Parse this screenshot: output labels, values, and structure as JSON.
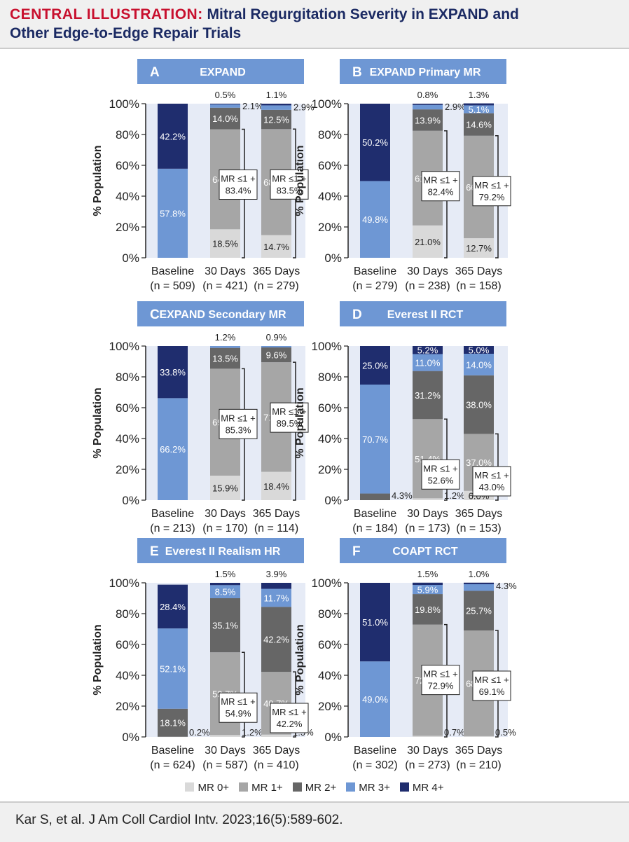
{
  "header": {
    "title_lead": "CENTRAL ILLUSTRATION:",
    "title_line1": " Mitral Regurgitation Severity in EXPAND and",
    "title_line2": "Other Edge-to-Edge Repair Trials"
  },
  "colors": {
    "MR 0+": "#d9d9d9",
    "MR 1+": "#a6a6a6",
    "MR 2+": "#666666",
    "MR 3+": "#6e97d4",
    "MR 4+": "#1f2d6e",
    "panel_title_bg": "#6e97d4",
    "plot_bg": "#e6ebf6"
  },
  "legend": {
    "items": [
      "MR 0+",
      "MR 1+",
      "MR 2+",
      "MR 3+",
      "MR 4+"
    ]
  },
  "footer": {
    "citation": "Kar S, et al. J Am Coll Cardiol Intv. 2023;16(5):589-602."
  },
  "chart_data": [
    {
      "type": "bar",
      "stacked": true,
      "letter": "A",
      "title": "EXPAND",
      "ylabel": "% Population",
      "ylim": [
        0,
        100
      ],
      "yticks": [
        "0%",
        "20%",
        "40%",
        "60%",
        "80%",
        "100%"
      ],
      "categories": [
        "Baseline",
        "30 Days",
        "365 Days"
      ],
      "n": [
        "(n = 509)",
        "(n = 421)",
        "(n = 279)"
      ],
      "series": [
        {
          "name": "MR 0+",
          "values": [
            0,
            18.5,
            14.7
          ]
        },
        {
          "name": "MR 1+",
          "values": [
            0,
            64.9,
            68.8
          ]
        },
        {
          "name": "MR 2+",
          "values": [
            0,
            14.0,
            12.5
          ]
        },
        {
          "name": "MR 3+",
          "values": [
            57.8,
            2.1,
            2.9
          ]
        },
        {
          "name": "MR 4+",
          "values": [
            42.2,
            0.5,
            1.1
          ]
        }
      ],
      "bracket_label1": "MR ≤1 +",
      "bracket_values": [
        null,
        "83.4%",
        "83.5%"
      ]
    },
    {
      "type": "bar",
      "stacked": true,
      "letter": "B",
      "title": "EXPAND Primary MR",
      "ylabel": "% Population",
      "ylim": [
        0,
        100
      ],
      "yticks": [
        "0%",
        "20%",
        "40%",
        "60%",
        "80%",
        "100%"
      ],
      "categories": [
        "Baseline",
        "30 Days",
        "365 Days"
      ],
      "n": [
        "(n = 279)",
        "(n = 238)",
        "(n = 158)"
      ],
      "series": [
        {
          "name": "MR 0+",
          "values": [
            0,
            21.0,
            12.7
          ]
        },
        {
          "name": "MR 1+",
          "values": [
            0,
            61.4,
            66.5
          ]
        },
        {
          "name": "MR 2+",
          "values": [
            0,
            13.9,
            14.6
          ]
        },
        {
          "name": "MR 3+",
          "values": [
            49.8,
            2.9,
            5.1
          ]
        },
        {
          "name": "MR 4+",
          "values": [
            50.2,
            0.8,
            1.3
          ]
        }
      ],
      "bracket_label1": "MR ≤1 +",
      "bracket_values": [
        null,
        "82.4%",
        "79.2%"
      ]
    },
    {
      "type": "bar",
      "stacked": true,
      "letter": "C",
      "title": "EXPAND Secondary MR",
      "ylabel": "% Population",
      "ylim": [
        0,
        100
      ],
      "yticks": [
        "0%",
        "20%",
        "40%",
        "60%",
        "80%",
        "100%"
      ],
      "categories": [
        "Baseline",
        "30 Days",
        "365 Days"
      ],
      "n": [
        "(n = 213)",
        "(n = 170)",
        "(n = 114)"
      ],
      "series": [
        {
          "name": "MR 0+",
          "values": [
            0,
            15.9,
            18.4
          ]
        },
        {
          "name": "MR 1+",
          "values": [
            0,
            69.4,
            71.1
          ]
        },
        {
          "name": "MR 2+",
          "values": [
            0,
            13.5,
            9.6
          ]
        },
        {
          "name": "MR 3+",
          "values": [
            66.2,
            1.2,
            0.9
          ]
        },
        {
          "name": "MR 4+",
          "values": [
            33.8,
            0,
            0
          ]
        }
      ],
      "bracket_label1": "MR ≤1 +",
      "bracket_values": [
        null,
        "85.3%",
        "89.5%"
      ]
    },
    {
      "type": "bar",
      "stacked": true,
      "letter": "D",
      "title": "Everest II RCT",
      "ylabel": "% Population",
      "ylim": [
        0,
        100
      ],
      "yticks": [
        "0%",
        "20%",
        "40%",
        "60%",
        "80%",
        "100%"
      ],
      "categories": [
        "Baseline",
        "30 Days",
        "365 Days"
      ],
      "n": [
        "(n = 184)",
        "(n = 173)",
        "(n = 153)"
      ],
      "series": [
        {
          "name": "MR 0+",
          "values": [
            0,
            1.2,
            6.0
          ]
        },
        {
          "name": "MR 1+",
          "values": [
            0,
            51.4,
            37.0
          ]
        },
        {
          "name": "MR 2+",
          "values": [
            4.3,
            31.2,
            38.0
          ]
        },
        {
          "name": "MR 3+",
          "values": [
            70.7,
            11.0,
            14.0
          ]
        },
        {
          "name": "MR 4+",
          "values": [
            25.0,
            5.2,
            5.0
          ]
        }
      ],
      "bracket_label1": "MR ≤1 +",
      "bracket_values": [
        null,
        "52.6%",
        "43.0%"
      ]
    },
    {
      "type": "bar",
      "stacked": true,
      "letter": "E",
      "title": "Everest II Realism HR",
      "ylabel": "% Population",
      "ylim": [
        0,
        100
      ],
      "yticks": [
        "0%",
        "20%",
        "40%",
        "60%",
        "80%",
        "100%"
      ],
      "categories": [
        "Baseline",
        "30 Days",
        "365 Days"
      ],
      "n": [
        "(n = 624)",
        "(n = 587)",
        "(n = 410)"
      ],
      "series": [
        {
          "name": "MR 0+",
          "values": [
            0,
            1.2,
            1.5
          ]
        },
        {
          "name": "MR 1+",
          "values": [
            0.2,
            53.7,
            40.7
          ]
        },
        {
          "name": "MR 2+",
          "values": [
            18.1,
            35.1,
            42.2
          ]
        },
        {
          "name": "MR 3+",
          "values": [
            52.1,
            8.5,
            11.7
          ]
        },
        {
          "name": "MR 4+",
          "values": [
            28.4,
            1.5,
            3.9
          ]
        }
      ],
      "bracket_label1": "MR ≤1 +",
      "bracket_values": [
        null,
        "54.9%",
        "42.2%"
      ]
    },
    {
      "type": "bar",
      "stacked": true,
      "letter": "F",
      "title": "COAPT RCT",
      "ylabel": "% Population",
      "ylim": [
        0,
        100
      ],
      "yticks": [
        "0%",
        "20%",
        "40%",
        "60%",
        "80%",
        "100%"
      ],
      "categories": [
        "Baseline",
        "30 Days",
        "365 Days"
      ],
      "n": [
        "(n = 302)",
        "(n = 273)",
        "(n = 210)"
      ],
      "series": [
        {
          "name": "MR 0+",
          "values": [
            0,
            0.7,
            0.5
          ]
        },
        {
          "name": "MR 1+",
          "values": [
            0,
            72.2,
            68.6
          ]
        },
        {
          "name": "MR 2+",
          "values": [
            0,
            19.8,
            25.7
          ]
        },
        {
          "name": "MR 3+",
          "values": [
            49.0,
            5.9,
            4.3
          ]
        },
        {
          "name": "MR 4+",
          "values": [
            51.0,
            1.5,
            1.0
          ]
        }
      ],
      "bracket_label1": "MR ≤1 +",
      "bracket_values": [
        null,
        "72.9%",
        "69.1%"
      ]
    }
  ]
}
